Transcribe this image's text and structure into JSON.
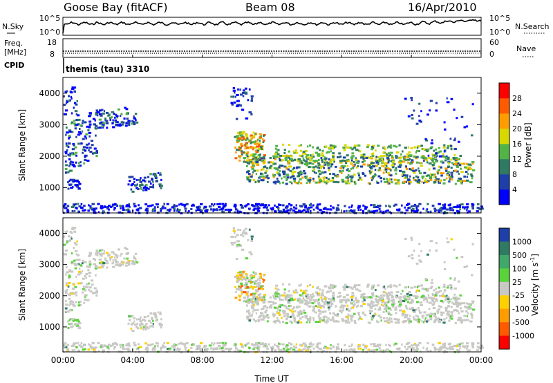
{
  "header": {
    "station": "Goose Bay (fitACF)",
    "beam": "Beam 08",
    "date": "16/Apr/2010"
  },
  "noise_panel": {
    "left_label": "N.Sky",
    "left_ticks": [
      "10^5",
      "10^0"
    ],
    "right_ticks": [
      "10^5",
      "10^0"
    ],
    "right_label": "N.Search"
  },
  "freq_panel": {
    "left_label_line1": "Freq.",
    "left_label_line2": "[MHz]",
    "left_ticks": [
      "18",
      "8"
    ],
    "right_ticks": [
      "60",
      "0"
    ],
    "right_label": "Nave"
  },
  "cpid": {
    "label": "CPID",
    "text": "themis (tau) 3310"
  },
  "x_axis": {
    "label": "Time UT",
    "ticks": [
      "00:00",
      "04:00",
      "08:00",
      "12:00",
      "16:00",
      "20:00",
      "00:00"
    ]
  },
  "chart_data": [
    {
      "type": "heatmap",
      "name": "power",
      "ylabel": "Slant Range [km]",
      "yticks": [
        "1000",
        "2000",
        "3000",
        "4000"
      ],
      "ylim": [
        200,
        4500
      ],
      "xlim_hours": [
        0,
        24
      ],
      "colorbar": {
        "label": "Power [dB]",
        "ticks": [
          "4",
          "8",
          "12",
          "16",
          "20",
          "24",
          "28"
        ],
        "colors": [
          "#0000ff",
          "#1f3fa8",
          "#2f7a63",
          "#52b346",
          "#d8d800",
          "#ff9d00",
          "#ff5a00",
          "#ff0000"
        ]
      }
    },
    {
      "type": "heatmap",
      "name": "velocity",
      "ylabel": "Slant Range [km]",
      "yticks": [
        "1000",
        "2000",
        "3000",
        "4000"
      ],
      "ylim": [
        200,
        4500
      ],
      "xlim_hours": [
        0,
        24
      ],
      "colorbar": {
        "label": "Velocity [m s",
        "label_sup": "-1",
        "label_end": "]",
        "ticks": [
          "1000",
          "500",
          "100",
          "25",
          "-25",
          "-100",
          "-500",
          "-1000"
        ],
        "colors": [
          "#1f3fa8",
          "#2f7a63",
          "#3fa86a",
          "#5ad23c",
          "#c8c8c4",
          "#ffd000",
          "#ff9d00",
          "#ff5a00",
          "#ff0000"
        ]
      }
    }
  ]
}
